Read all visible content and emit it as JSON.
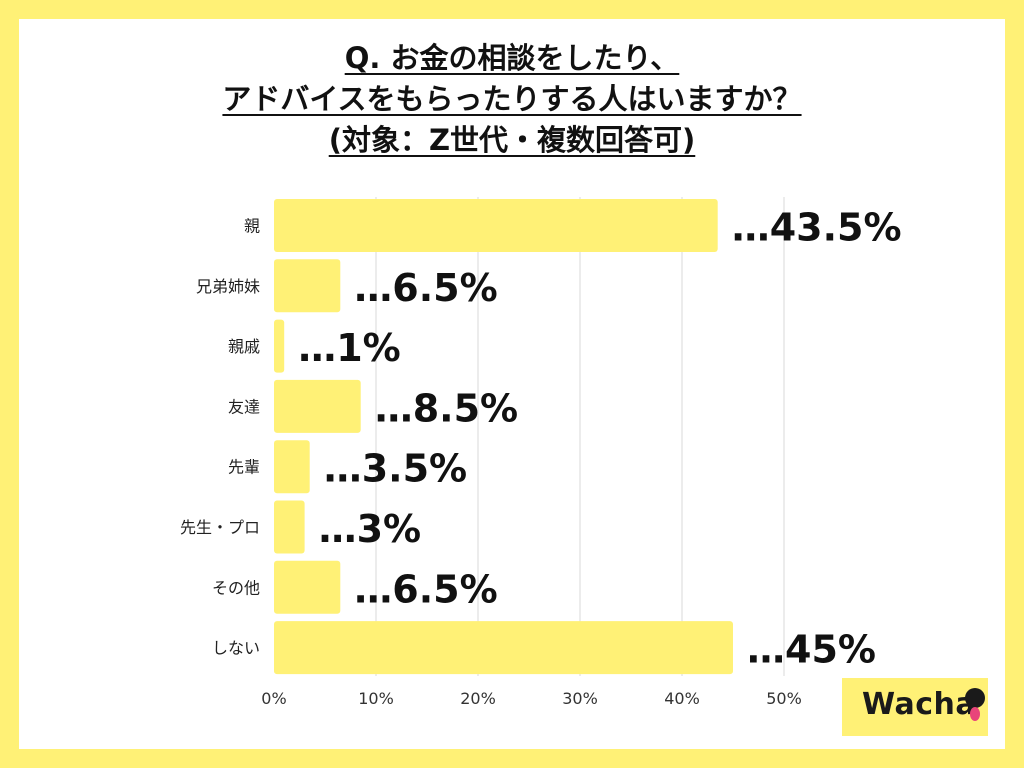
{
  "title_lines": [
    "Q. お金の相談をしたり、",
    "アドバイスをもらったりする人はいますか？",
    "(対象：Z世代・複数回答可)"
  ],
  "logo": {
    "text": "Wacha"
  },
  "colors": {
    "background": "#fff176",
    "bar": "#fff176",
    "grid": "#d9d9d9",
    "text": "#111111"
  },
  "chart_data": {
    "type": "bar",
    "orientation": "horizontal",
    "categories": [
      "親",
      "兄弟姉妹",
      "親戚",
      "友達",
      "先輩",
      "先生・プロ",
      "その他",
      "しない"
    ],
    "values": [
      43.5,
      6.5,
      1,
      8.5,
      3.5,
      3,
      6.5,
      45
    ],
    "data_labels": [
      "…43.5%",
      "…6.5%",
      "…1%",
      "…8.5%",
      "…3.5%",
      "…3%",
      "…6.5%",
      "…45%"
    ],
    "x_ticks": [
      "0%",
      "10%",
      "20%",
      "30%",
      "40%",
      "50%"
    ],
    "xlim": [
      0,
      50
    ],
    "grid": true,
    "legend": "none"
  }
}
